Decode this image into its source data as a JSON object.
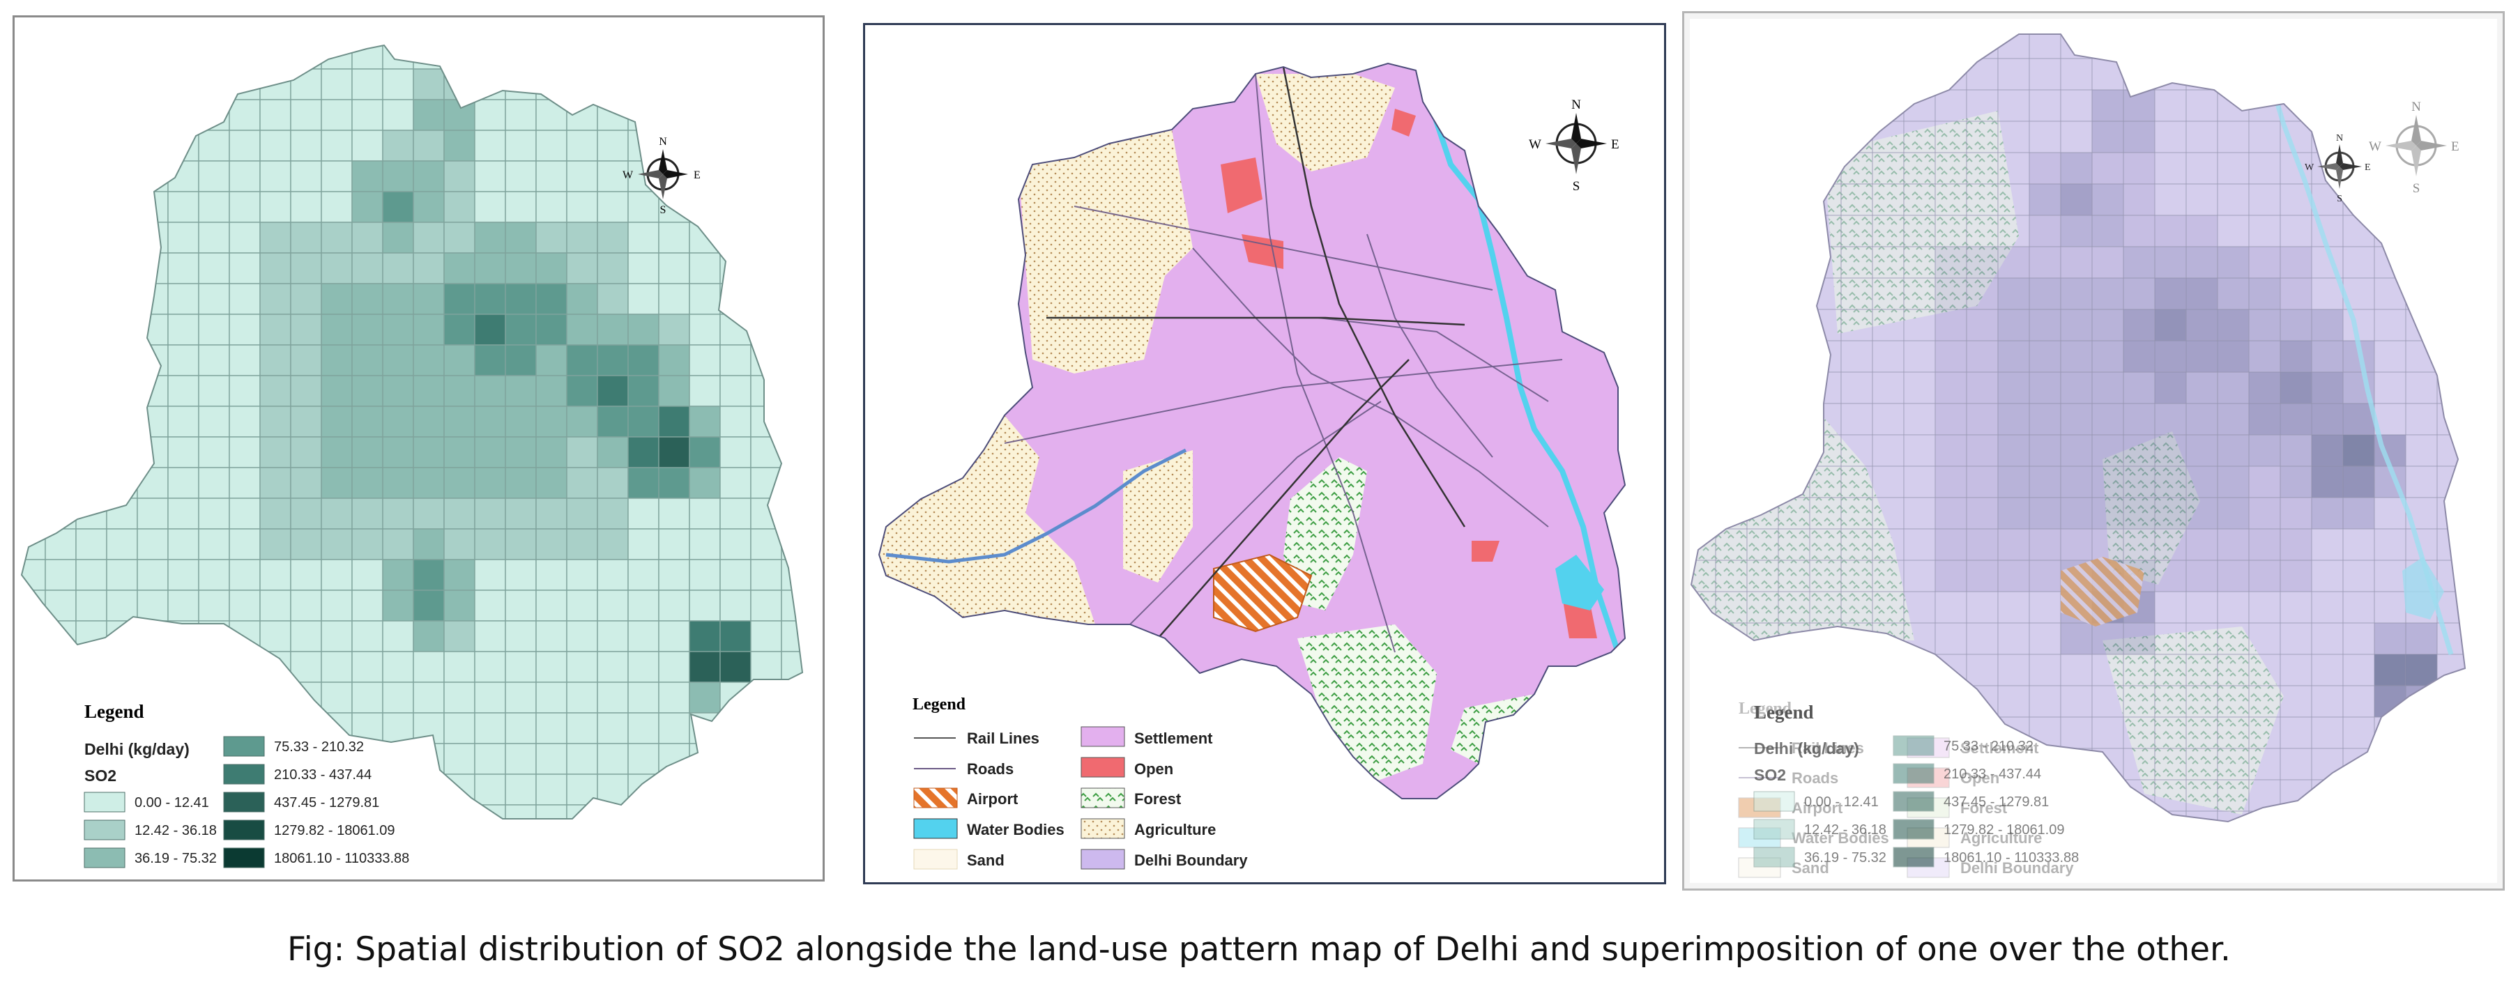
{
  "caption": "Fig: Spatial distribution of SO2 alongside the land-use pattern map of Delhi and superimposition of one over the other.",
  "compass": {
    "n": "N",
    "s": "S",
    "e": "E",
    "w": "W"
  },
  "colors": {
    "so2_classes": [
      "#cfeee6",
      "#a9d0c8",
      "#8cbcb2",
      "#5e9a8f",
      "#3e7c72",
      "#2b6158",
      "#184c43",
      "#0b3a32"
    ],
    "settlement": "#e3b0ee",
    "open": "#f06a70",
    "airport": "#e5742a",
    "water": "#53d2ee",
    "agriculture": "#fbf3d8",
    "boundary": "#cdb9ee",
    "forest": "#e9f7e4",
    "roads": "#6b5a86"
  },
  "so2_map": {
    "legend_title": "Legend",
    "subtitle": "Delhi (kg/day)",
    "pollutant": "SO2",
    "classes": [
      "0.00 - 12.41",
      "12.42 - 36.18",
      "36.19 - 75.32",
      "75.33 - 210.32",
      "210.33 - 437.44",
      "437.45 - 1279.81",
      "1279.82 - 18061.09",
      "18061.10 - 110333.88"
    ]
  },
  "landuse_map": {
    "legend_title": "Legend",
    "items": [
      "Rail Lines",
      "Roads",
      "Airport",
      "Water Bodies",
      "Sand",
      "Settlement",
      "Open",
      "Forest",
      "Agriculture",
      "Delhi Boundary"
    ]
  },
  "overlay_map": {
    "legend_title_a": "Legend",
    "legend_title_b": "Legend"
  }
}
